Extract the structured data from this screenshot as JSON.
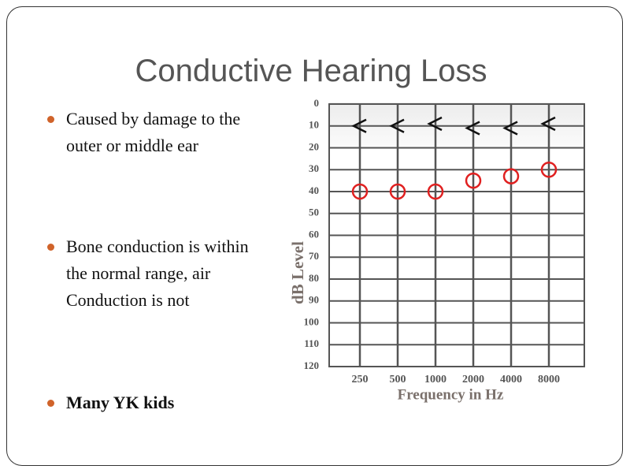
{
  "title": "Conductive Hearing Loss",
  "bullets": [
    {
      "text": "Caused by damage to the outer or middle ear",
      "bold": false
    },
    {
      "text": "Bone conduction is within the normal range, air Conduction is not",
      "bold": false
    },
    {
      "text": "Many YK kids",
      "bold": true
    }
  ],
  "chart_data": {
    "type": "scatter",
    "y_label": "dB Level",
    "x_label": "Frequency in Hz",
    "categories": [
      "250",
      "500",
      "1000",
      "2000",
      "4000",
      "8000"
    ],
    "ylim": [
      0,
      120
    ],
    "inverted": true,
    "yticks": [
      0,
      10,
      20,
      30,
      40,
      50,
      60,
      70,
      80,
      90,
      100,
      110,
      120
    ],
    "grid": true,
    "series": [
      {
        "marker": "circle",
        "color": "#e02020",
        "values": [
          40,
          40,
          40,
          35,
          33,
          30
        ]
      },
      {
        "marker": "less-than",
        "color": "#111111",
        "values": [
          10,
          10,
          9,
          11,
          11,
          9
        ]
      }
    ]
  }
}
